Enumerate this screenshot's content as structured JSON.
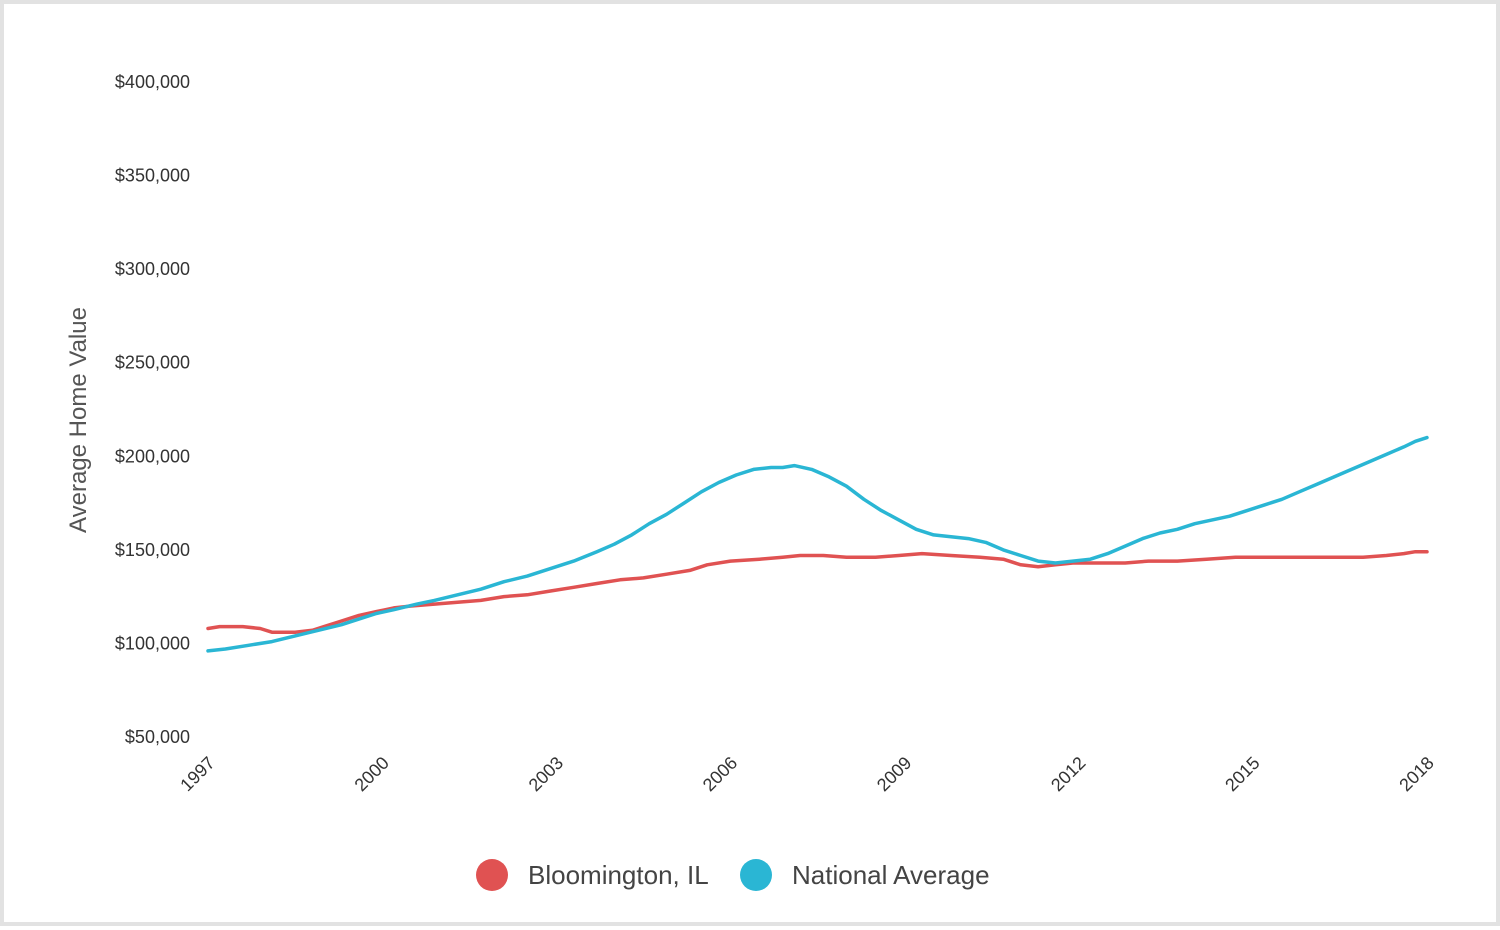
{
  "chart_data": {
    "type": "line",
    "ylabel": "Average Home Value",
    "xlabel": "",
    "ylim": [
      50000,
      400000
    ],
    "xlim": [
      1997,
      2018
    ],
    "yticks": [
      50000,
      100000,
      150000,
      200000,
      250000,
      300000,
      350000,
      400000
    ],
    "ytick_labels": [
      "$50,000",
      "$100,000",
      "$150,000",
      "$200,000",
      "$250,000",
      "$300,000",
      "$350,000",
      "$400,000"
    ],
    "xticks": [
      1997,
      2000,
      2003,
      2006,
      2009,
      2012,
      2015,
      2018
    ],
    "xtick_labels": [
      "1997",
      "2000",
      "2003",
      "2006",
      "2009",
      "2012",
      "2015",
      "2018"
    ],
    "grid": false,
    "legend": "bottom-center",
    "series": [
      {
        "name": "Bloomington, IL",
        "color": "#e05252",
        "points": [
          [
            1997.0,
            108000
          ],
          [
            1997.2,
            109000
          ],
          [
            1997.6,
            109000
          ],
          [
            1997.9,
            108000
          ],
          [
            1998.1,
            106000
          ],
          [
            1998.5,
            106000
          ],
          [
            1998.8,
            107000
          ],
          [
            1999.0,
            109000
          ],
          [
            1999.3,
            112000
          ],
          [
            1999.6,
            115000
          ],
          [
            1999.9,
            117000
          ],
          [
            2000.2,
            119000
          ],
          [
            2000.5,
            120000
          ],
          [
            2000.9,
            121000
          ],
          [
            2001.3,
            122000
          ],
          [
            2001.7,
            123000
          ],
          [
            2002.1,
            125000
          ],
          [
            2002.5,
            126000
          ],
          [
            2002.9,
            128000
          ],
          [
            2003.3,
            130000
          ],
          [
            2003.7,
            132000
          ],
          [
            2004.1,
            134000
          ],
          [
            2004.5,
            135000
          ],
          [
            2004.9,
            137000
          ],
          [
            2005.3,
            139000
          ],
          [
            2005.6,
            142000
          ],
          [
            2006.0,
            144000
          ],
          [
            2006.5,
            145000
          ],
          [
            2006.9,
            146000
          ],
          [
            2007.2,
            147000
          ],
          [
            2007.6,
            147000
          ],
          [
            2008.0,
            146000
          ],
          [
            2008.5,
            146000
          ],
          [
            2008.9,
            147000
          ],
          [
            2009.3,
            148000
          ],
          [
            2009.8,
            147000
          ],
          [
            2010.3,
            146000
          ],
          [
            2010.7,
            145000
          ],
          [
            2011.0,
            142000
          ],
          [
            2011.3,
            141000
          ],
          [
            2011.6,
            142000
          ],
          [
            2011.9,
            143000
          ],
          [
            2012.3,
            143000
          ],
          [
            2012.8,
            143000
          ],
          [
            2013.2,
            144000
          ],
          [
            2013.7,
            144000
          ],
          [
            2014.2,
            145000
          ],
          [
            2014.7,
            146000
          ],
          [
            2015.2,
            146000
          ],
          [
            2015.7,
            146000
          ],
          [
            2016.2,
            146000
          ],
          [
            2016.6,
            146000
          ],
          [
            2016.9,
            146000
          ],
          [
            2017.3,
            147000
          ],
          [
            2017.6,
            148000
          ],
          [
            2017.8,
            149000
          ],
          [
            2018.0,
            149000
          ]
        ]
      },
      {
        "name": "National Average",
        "color": "#2ab6d4",
        "points": [
          [
            1997.0,
            96000
          ],
          [
            1997.3,
            97000
          ],
          [
            1997.7,
            99000
          ],
          [
            1998.1,
            101000
          ],
          [
            1998.5,
            104000
          ],
          [
            1998.9,
            107000
          ],
          [
            1999.3,
            110000
          ],
          [
            1999.6,
            113000
          ],
          [
            1999.9,
            116000
          ],
          [
            2000.2,
            118000
          ],
          [
            2000.6,
            121000
          ],
          [
            2000.9,
            123000
          ],
          [
            2001.3,
            126000
          ],
          [
            2001.7,
            129000
          ],
          [
            2002.1,
            133000
          ],
          [
            2002.5,
            136000
          ],
          [
            2002.9,
            140000
          ],
          [
            2003.3,
            144000
          ],
          [
            2003.7,
            149000
          ],
          [
            2004.0,
            153000
          ],
          [
            2004.3,
            158000
          ],
          [
            2004.6,
            164000
          ],
          [
            2004.9,
            169000
          ],
          [
            2005.2,
            175000
          ],
          [
            2005.5,
            181000
          ],
          [
            2005.8,
            186000
          ],
          [
            2006.1,
            190000
          ],
          [
            2006.4,
            193000
          ],
          [
            2006.7,
            194000
          ],
          [
            2006.9,
            194000
          ],
          [
            2007.1,
            195000
          ],
          [
            2007.4,
            193000
          ],
          [
            2007.7,
            189000
          ],
          [
            2008.0,
            184000
          ],
          [
            2008.3,
            177000
          ],
          [
            2008.6,
            171000
          ],
          [
            2008.9,
            166000
          ],
          [
            2009.2,
            161000
          ],
          [
            2009.5,
            158000
          ],
          [
            2009.8,
            157000
          ],
          [
            2010.1,
            156000
          ],
          [
            2010.4,
            154000
          ],
          [
            2010.7,
            150000
          ],
          [
            2011.0,
            147000
          ],
          [
            2011.3,
            144000
          ],
          [
            2011.6,
            143000
          ],
          [
            2011.9,
            144000
          ],
          [
            2012.2,
            145000
          ],
          [
            2012.5,
            148000
          ],
          [
            2012.8,
            152000
          ],
          [
            2013.1,
            156000
          ],
          [
            2013.4,
            159000
          ],
          [
            2013.7,
            161000
          ],
          [
            2014.0,
            164000
          ],
          [
            2014.3,
            166000
          ],
          [
            2014.6,
            168000
          ],
          [
            2014.9,
            171000
          ],
          [
            2015.2,
            174000
          ],
          [
            2015.5,
            177000
          ],
          [
            2015.8,
            181000
          ],
          [
            2016.1,
            185000
          ],
          [
            2016.4,
            189000
          ],
          [
            2016.7,
            193000
          ],
          [
            2017.0,
            197000
          ],
          [
            2017.3,
            201000
          ],
          [
            2017.6,
            205000
          ],
          [
            2017.8,
            208000
          ],
          [
            2018.0,
            210000
          ]
        ]
      }
    ]
  }
}
